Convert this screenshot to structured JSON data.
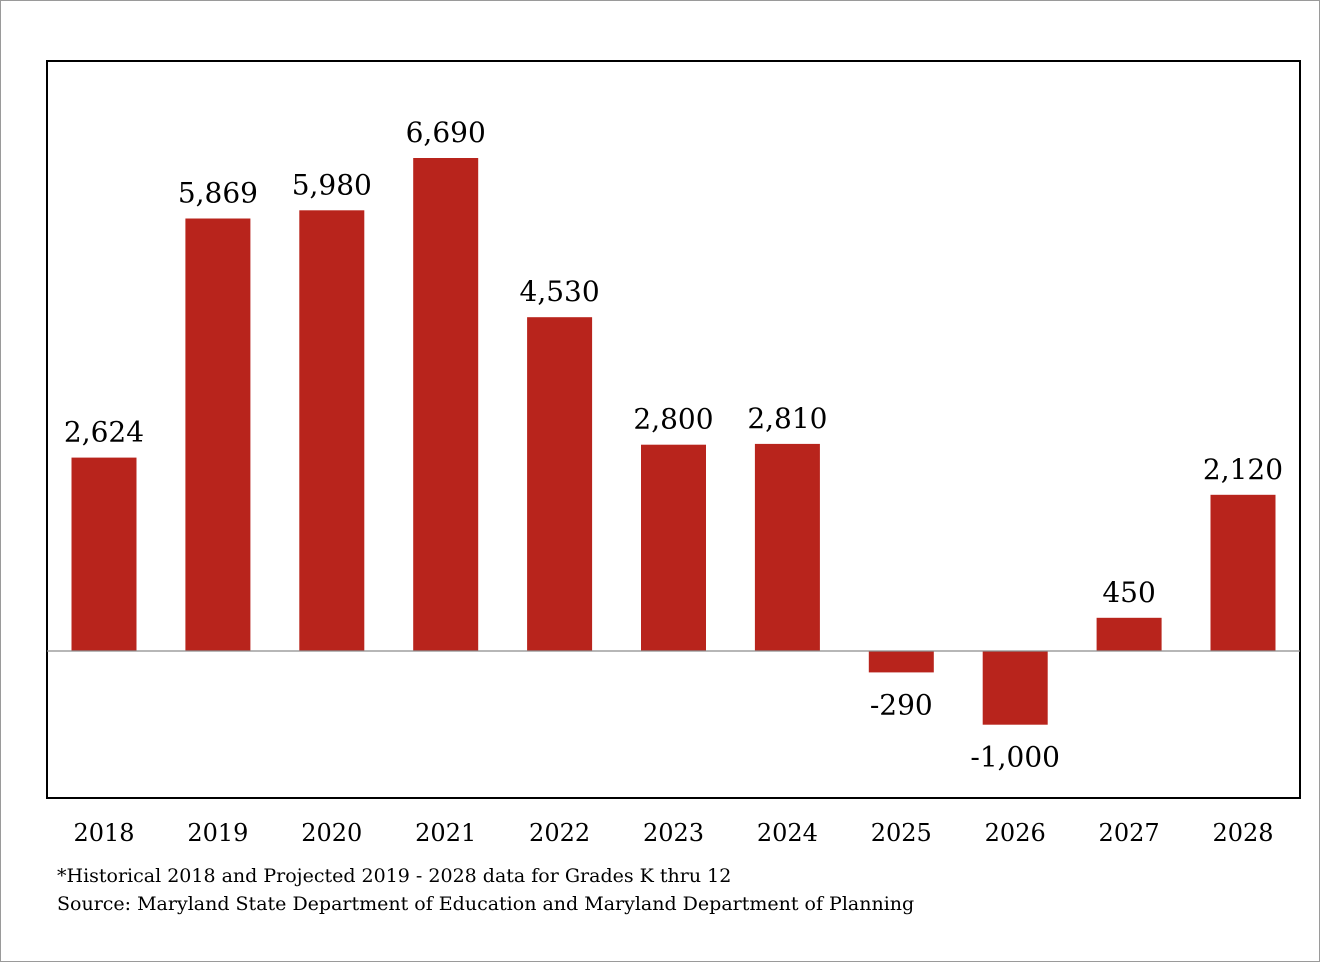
{
  "chart_data": {
    "type": "bar",
    "categories": [
      "2018",
      "2019",
      "2020",
      "2021",
      "2022",
      "2023",
      "2024",
      "2025",
      "2026",
      "2027",
      "2028"
    ],
    "values": [
      2624,
      5869,
      5980,
      6690,
      4530,
      2800,
      2810,
      -290,
      -1000,
      450,
      2120
    ],
    "data_labels": [
      "2,624",
      "5,869",
      "5,980",
      "6,690",
      "4,530",
      "2,800",
      "2,810",
      "-290",
      "-1,000",
      "450",
      "2,120"
    ],
    "ylim": [
      -2000,
      8000
    ],
    "grid": false,
    "legend": "none",
    "bar_color": "#b8241c"
  },
  "notes": {
    "footnote": "*Historical 2018 and Projected 2019 - 2028 data for Grades K thru 12",
    "source": "Source: Maryland State Department of Education and Maryland Department of Planning"
  }
}
